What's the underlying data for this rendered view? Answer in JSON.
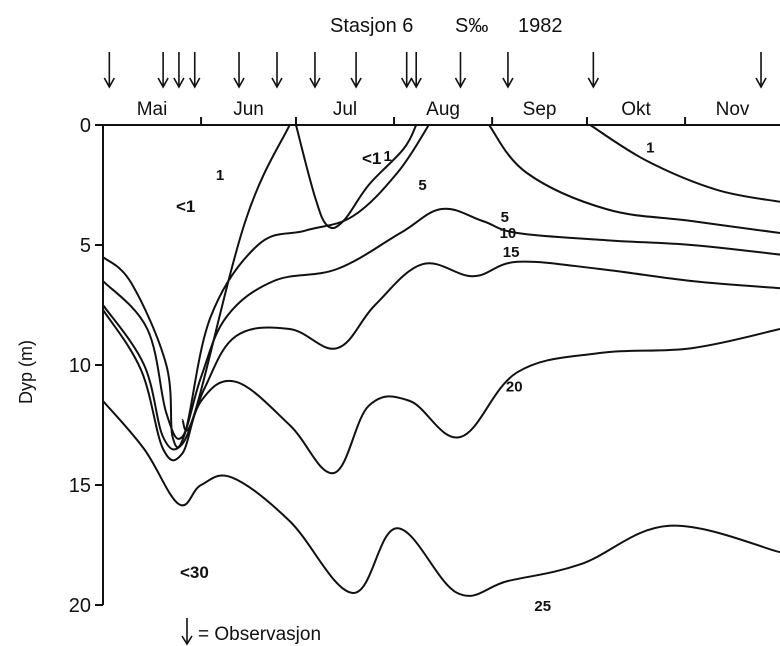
{
  "chart_data": {
    "type": "line",
    "title": {
      "station": "Stasjon 6",
      "variable": "S‰",
      "year": "1982"
    },
    "ylabel": "Dyp (m)",
    "ylim": [
      0,
      20
    ],
    "y_inverted": true,
    "yticks": [
      "0",
      "5",
      "10",
      "15",
      "20"
    ],
    "months": [
      "Mai",
      "Jun",
      "Jul",
      "Aug",
      "Sep",
      "Okt",
      "Nov"
    ],
    "x_unit": "day-of-year",
    "xlim": [
      121,
      335
    ],
    "observation_days": [
      123,
      140,
      145,
      150,
      164,
      176,
      188,
      201,
      217,
      220,
      234,
      249,
      276,
      329
    ],
    "legend": "= Observasjon",
    "series": [
      {
        "label": "1",
        "points": [
          [
            180,
            0
          ],
          [
            166,
            4
          ],
          [
            150,
            12
          ],
          [
            146,
            12.3
          ]
        ]
      },
      {
        "label": "1",
        "points": [
          [
            182,
            0
          ],
          [
            188,
            3
          ],
          [
            192,
            4.2
          ],
          [
            197,
            4
          ],
          [
            205,
            2.5
          ],
          [
            216,
            1
          ],
          [
            220,
            0
          ]
        ]
      },
      {
        "label": "5",
        "points": [
          [
            224,
            0
          ],
          [
            214,
            2
          ],
          [
            200,
            3.8
          ],
          [
            185,
            4.4
          ],
          [
            170,
            5
          ],
          [
            155,
            8
          ],
          [
            147,
            12.8
          ],
          [
            143,
            13
          ],
          [
            141,
            10
          ],
          [
            130,
            6.6
          ],
          [
            121,
            5.5
          ]
        ]
      },
      {
        "label": "10",
        "points": [
          [
            121,
            6.5
          ],
          [
            135,
            8.5
          ],
          [
            141,
            12
          ],
          [
            146,
            13
          ],
          [
            152,
            10.5
          ],
          [
            160,
            8
          ],
          [
            175,
            6.5
          ],
          [
            195,
            6
          ],
          [
            215,
            4.5
          ],
          [
            228,
            3.5
          ],
          [
            241,
            4
          ],
          [
            252,
            4.5
          ],
          [
            280,
            4.8
          ],
          [
            307,
            5
          ],
          [
            335,
            5.4
          ]
        ]
      },
      {
        "label": "15",
        "points": [
          [
            121,
            7.5
          ],
          [
            134,
            10
          ],
          [
            140,
            13
          ],
          [
            146,
            13.3
          ],
          [
            153,
            11
          ],
          [
            163,
            8.8
          ],
          [
            180,
            8.5
          ],
          [
            195,
            9.3
          ],
          [
            207,
            7.5
          ],
          [
            222,
            5.8
          ],
          [
            238,
            6.3
          ],
          [
            252,
            5.7
          ],
          [
            278,
            6
          ],
          [
            307,
            6.5
          ],
          [
            335,
            6.8
          ]
        ]
      },
      {
        "label": "20",
        "points": [
          [
            121,
            7.7
          ],
          [
            133,
            10.2
          ],
          [
            140,
            13.5
          ],
          [
            146,
            13.7
          ],
          [
            152,
            11.5
          ],
          [
            163,
            10.7
          ],
          [
            180,
            12.5
          ],
          [
            194,
            14.5
          ],
          [
            205,
            11.7
          ],
          [
            218,
            11.5
          ],
          [
            234,
            13
          ],
          [
            252,
            10.3
          ],
          [
            278,
            9.5
          ],
          [
            307,
            9.3
          ],
          [
            335,
            8.5
          ]
        ]
      },
      {
        "label": "25",
        "points": [
          [
            121,
            11.5
          ],
          [
            134,
            13.5
          ],
          [
            145,
            15.8
          ],
          [
            152,
            15
          ],
          [
            162,
            14.7
          ],
          [
            180,
            16.5
          ],
          [
            200,
            19.5
          ],
          [
            214,
            16.8
          ],
          [
            233,
            19.5
          ],
          [
            249,
            19
          ],
          [
            272,
            18.3
          ],
          [
            300,
            16.7
          ],
          [
            335,
            17.8
          ]
        ]
      },
      {
        "label": "1",
        "points": [
          [
            275,
            0
          ],
          [
            293,
            1.5
          ],
          [
            315,
            2.7
          ],
          [
            335,
            3.2
          ]
        ]
      },
      {
        "label": "5",
        "points": [
          [
            243,
            0
          ],
          [
            255,
            2
          ],
          [
            280,
            3.5
          ],
          [
            307,
            4
          ],
          [
            335,
            4.5
          ]
        ]
      }
    ],
    "region_labels": [
      "<1",
      "<1",
      "<30"
    ]
  }
}
